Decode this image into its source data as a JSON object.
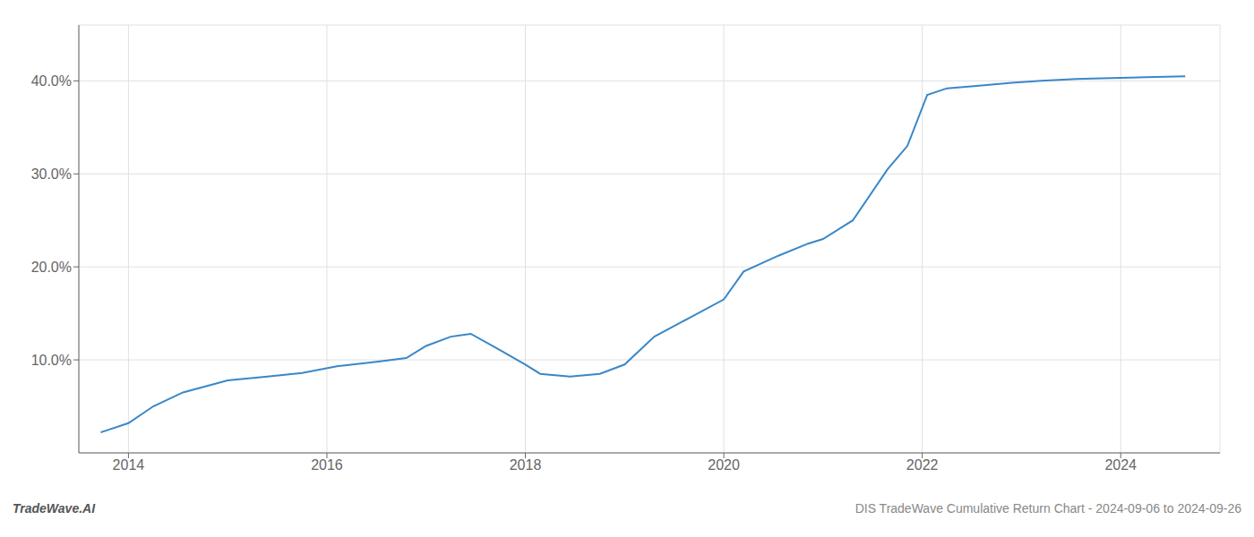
{
  "chart_data": {
    "type": "line",
    "x": [
      2013.72,
      2014.0,
      2014.25,
      2014.55,
      2015.0,
      2015.4,
      2015.75,
      2016.1,
      2016.5,
      2016.8,
      2017.0,
      2017.25,
      2017.45,
      2017.72,
      2018.0,
      2018.15,
      2018.45,
      2018.75,
      2019.0,
      2019.3,
      2019.65,
      2020.0,
      2020.2,
      2020.55,
      2020.85,
      2021.0,
      2021.3,
      2021.65,
      2021.85,
      2022.05,
      2022.25,
      2022.6,
      2022.9,
      2023.2,
      2023.55,
      2023.9,
      2024.25,
      2024.65
    ],
    "values": [
      2.2,
      3.2,
      5.0,
      6.5,
      7.8,
      8.2,
      8.6,
      9.3,
      9.8,
      10.2,
      11.5,
      12.5,
      12.8,
      11.2,
      9.5,
      8.5,
      8.2,
      8.5,
      9.5,
      12.5,
      14.5,
      16.5,
      19.5,
      21.2,
      22.5,
      23.0,
      25.0,
      30.5,
      33.0,
      38.5,
      39.2,
      39.5,
      39.8,
      40.0,
      40.2,
      40.3,
      40.4,
      40.5
    ],
    "color": "#3a87c8",
    "xlim": [
      2013.5,
      2025.0
    ],
    "ylim": [
      0,
      46
    ],
    "xticks": [
      2014,
      2016,
      2018,
      2020,
      2022,
      2024
    ],
    "yticks": [
      {
        "value": 10,
        "label": "10.0%"
      },
      {
        "value": 20,
        "label": "20.0%"
      },
      {
        "value": 30,
        "label": "30.0%"
      },
      {
        "value": 40,
        "label": "40.0%"
      }
    ],
    "grid": true,
    "annotations": [
      "TradeWave.AI",
      "DIS TradeWave Cumulative Return Chart - 2024-09-06 to 2024-09-26"
    ]
  }
}
